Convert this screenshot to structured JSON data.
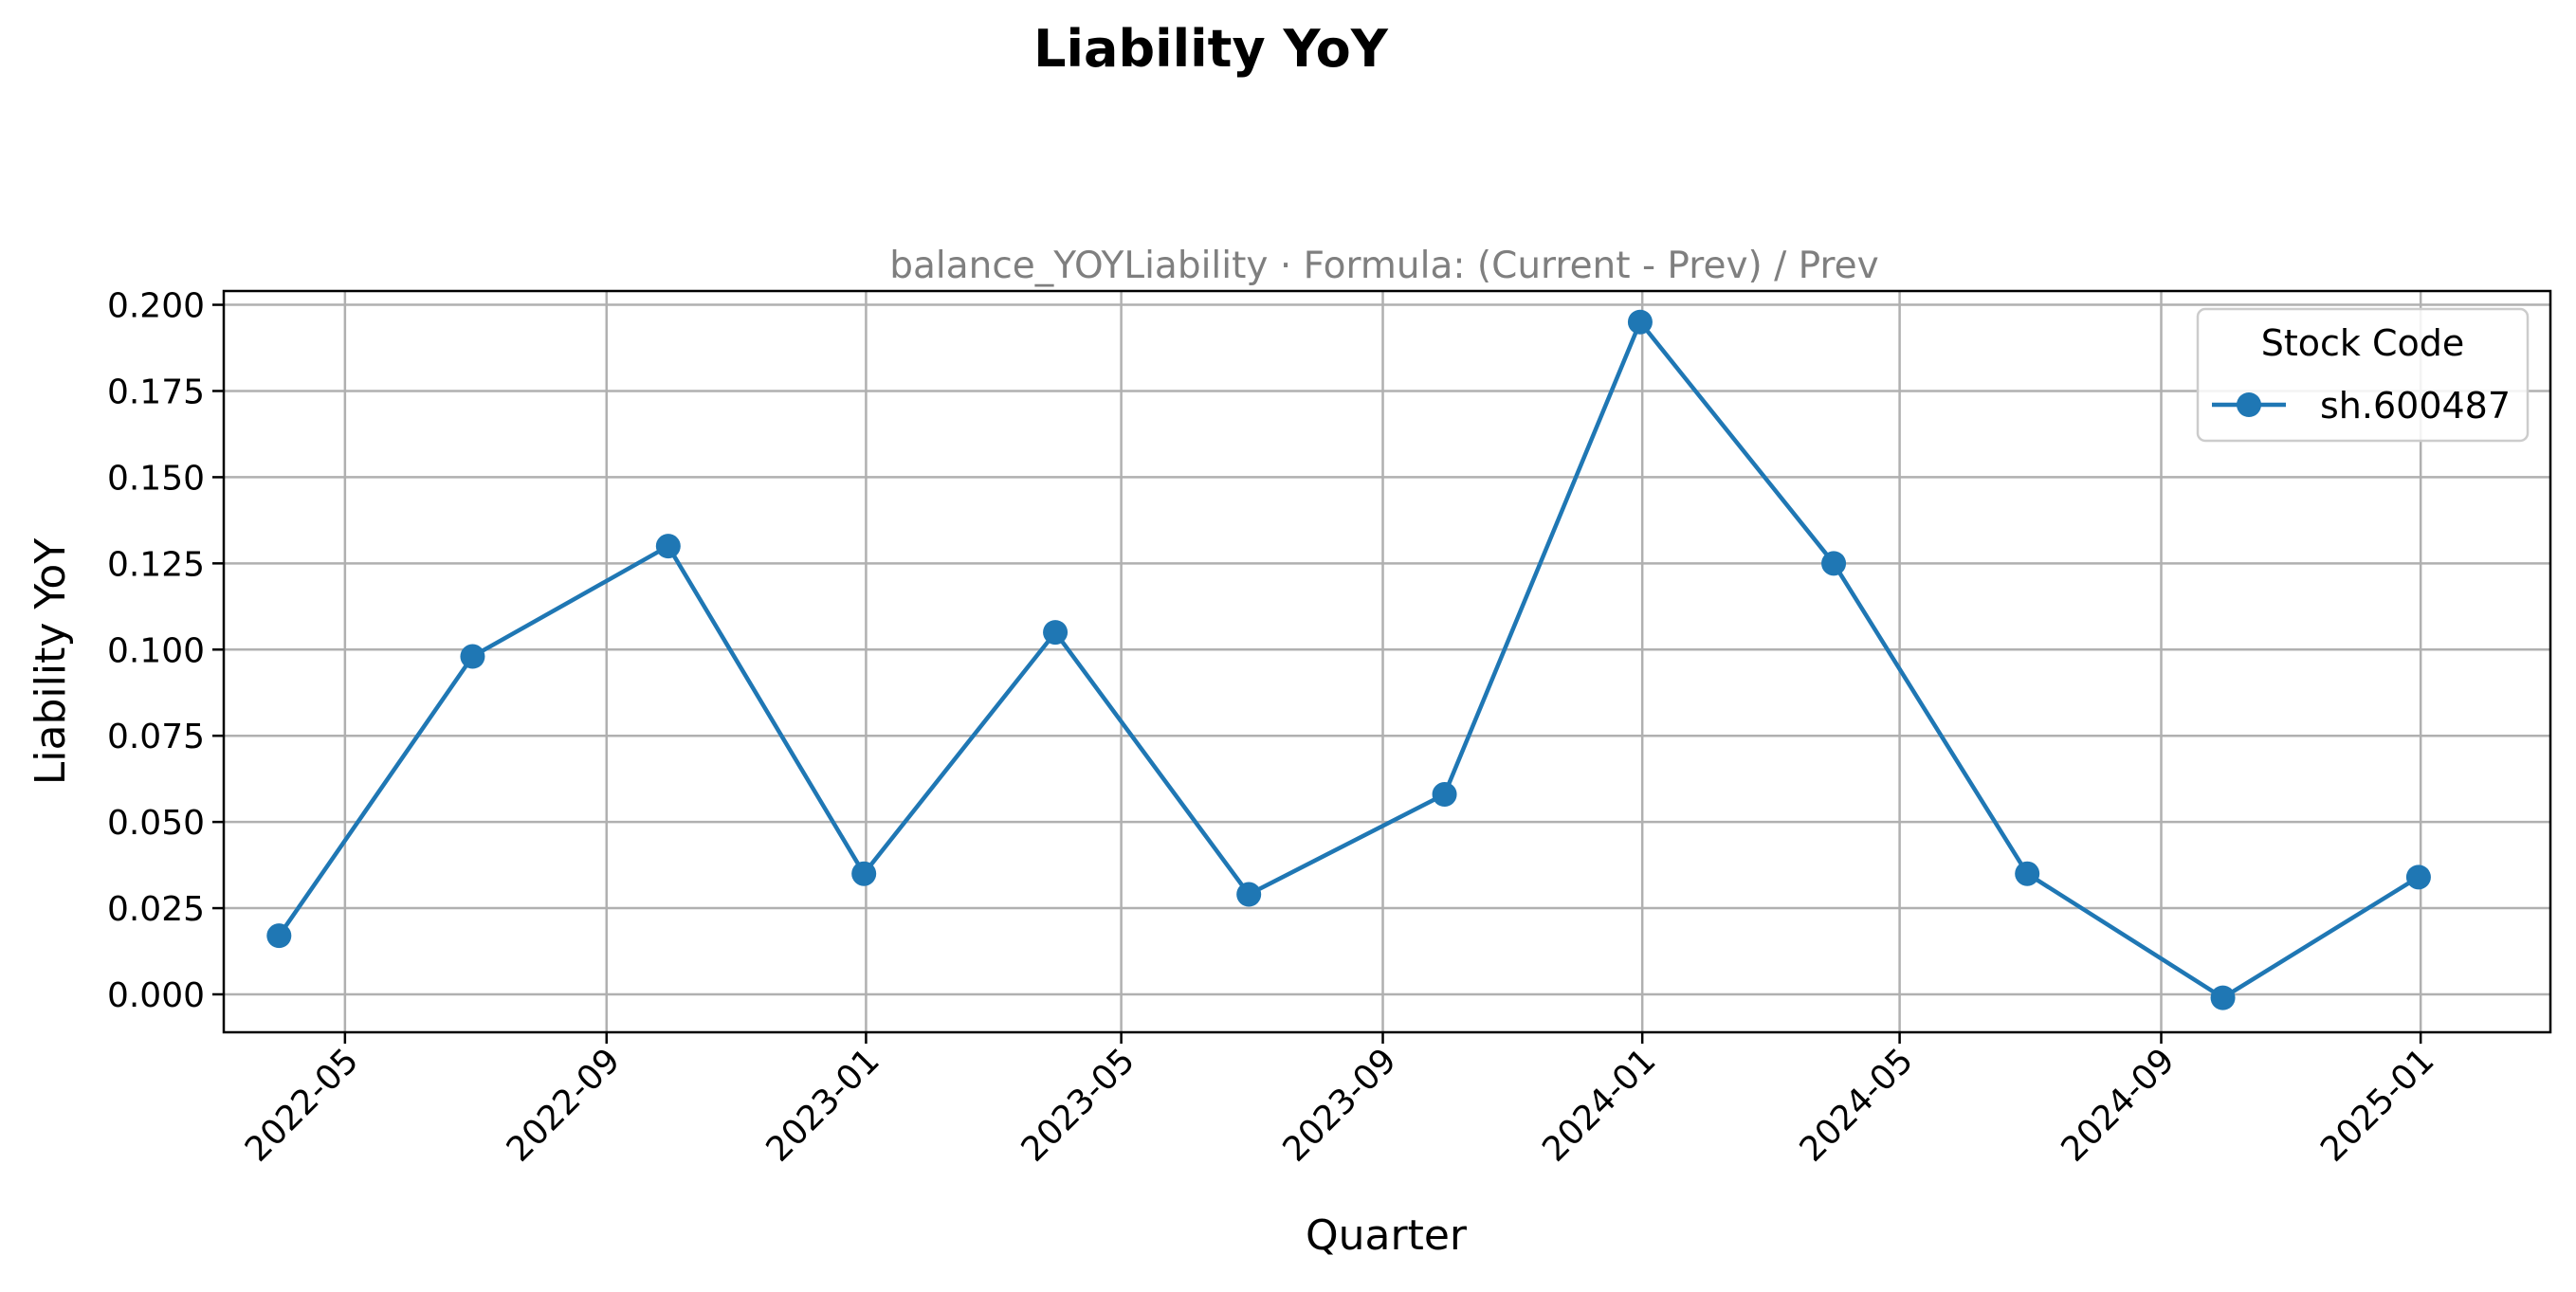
{
  "chart_data": {
    "type": "line",
    "title": "Liability YoY",
    "subtitle": "balance_YOYLiability · Formula: (Current - Prev) / Prev",
    "xlabel": "Quarter",
    "ylabel": "Liability YoY",
    "x_ticks": [
      "2022-05",
      "2022-09",
      "2023-01",
      "2023-05",
      "2023-09",
      "2024-01",
      "2024-05",
      "2024-09",
      "2025-01"
    ],
    "y_ticks": [
      "0.000",
      "0.025",
      "0.050",
      "0.075",
      "0.100",
      "0.125",
      "0.150",
      "0.175",
      "0.200"
    ],
    "ylim": [
      -0.011,
      0.204
    ],
    "xlim": [
      "2022-03-05",
      "2025-03-03"
    ],
    "grid": true,
    "legend": {
      "title": "Stock Code",
      "placement": "upper right"
    },
    "series": [
      {
        "name": "sh.600487",
        "color": "#1f77b4",
        "marker": "circle",
        "x": [
          "2022-03-31",
          "2022-06-30",
          "2022-09-30",
          "2022-12-31",
          "2023-03-31",
          "2023-06-30",
          "2023-09-30",
          "2023-12-31",
          "2024-03-31",
          "2024-06-30",
          "2024-09-30",
          "2024-12-31"
        ],
        "values": [
          0.017,
          0.098,
          0.13,
          0.035,
          0.105,
          0.029,
          0.058,
          0.195,
          0.125,
          0.035,
          -0.001,
          0.034
        ]
      }
    ]
  }
}
